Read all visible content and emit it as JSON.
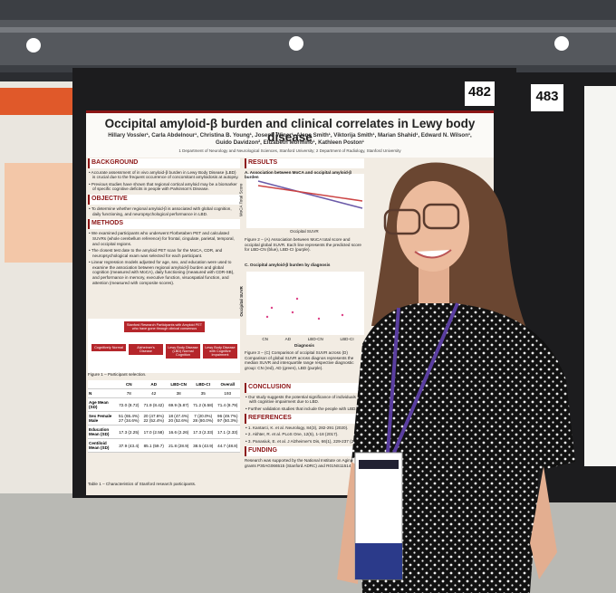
{
  "boards": [
    "482",
    "483"
  ],
  "poster": {
    "title": "Occipital amyloid-β burden and clinical correlates in Lewy body disease",
    "authors": "Hillary Vossler¹, Carla Abdelnour¹, Christina B. Young¹, Joseph Winer¹, Alena Smith¹, Viktorija Smith¹, Marian Shahid¹, Edward N. Wilson¹, Guido Davidzon², Elizabeth Mormino¹, Kathleen Poston¹",
    "affiliation": "1 Department of Neurology and Neurological Sciences, Stanford University; 2 Department of Radiology, Stanford University",
    "sections": [
      {
        "heading": "BACKGROUND",
        "items": [
          "Accurate assessment of in vivo amyloid-β burden in Lewy Body Disease (LBD) is crucial due to the frequent occurrence of concomitant amyloidosis at autopsy.",
          "Previous studies have shown that regional cortical amyloid may be a biomarker of specific cognitive deficits in people with Parkinson's Disease."
        ]
      },
      {
        "heading": "OBJECTIVE",
        "items": [
          "To determine whether regional amyloid-β is associated with global cognition, daily functioning, and neuropsychological performance in LBD."
        ]
      },
      {
        "heading": "METHODS",
        "items": [
          "We examined participants who underwent Florbetaben PET and calculated SUVRs (whole cerebellum reference) for frontal, cingulate, parietal, temporal, and occipital regions.",
          "The closest test date to the amyloid PET scan for the MoCA, CDR, and neuropsychological exam was selected for each participant.",
          "Linear regression models adjusted for age, sex, and education were used to examine the association between regional amyloid-β burden and global cognition (measured with MoCA), daily functioning (measured with CDR-SB), and performance in memory, executive function, visuospatial function, and attention (measured with composite scores)."
        ]
      }
    ],
    "figure1": {
      "top": "Stanford Research Participants with Amyloid PET who have gone through clinical consensus",
      "boxes": [
        "Cognitively Normal",
        "Alzheimer's Disease",
        "Lewy Body Disease (LBD) Normal Cognition",
        "Lewy Body Disease with Cognitive Impairment"
      ],
      "caption": "Figure 1 – Participant selection."
    },
    "table": {
      "header": [
        "",
        "CN",
        "AD",
        "LBD-CN",
        "LBD-CI",
        "Overall"
      ],
      "rows": [
        [
          "N",
          "78",
          "42",
          "38",
          "35",
          "193"
        ],
        [
          "Age Mean (SD)",
          "72.0 (8.72)",
          "71.9 (8.42)",
          "69.9 (5.87)",
          "71.2 (6.58)",
          "71.4 (8.79)"
        ],
        [
          "Sex Female Male",
          "51 (65.4%) 27 (34.6%)",
          "20 (47.6%) 22 (52.4%)",
          "18 (47.4%) 20 (52.6%)",
          "7 (20.0%) 28 (80.0%)",
          "96 (49.7%) 97 (50.3%)"
        ],
        [
          "Education Mean (SD)",
          "17.3 (2.25)",
          "17.0 (2.58)",
          "16.6 (2.26)",
          "17.3 (2.33)",
          "17.1 (2.33)"
        ],
        [
          "Centiloid Mean (SD)",
          "37.9 (43.4)",
          "85.1 (59.7)",
          "21.8 (28.9)",
          "38.5 (43.9)",
          "44.7 (48.8)"
        ]
      ],
      "caption": "Table 1 – Characteristics of Stanford research participants."
    },
    "results": {
      "heading": "RESULTS",
      "chart_a": {
        "title": "A. Association between MoCA and occipital amyloid-β burden",
        "x_label": "Occipital SUVR",
        "y_label": "MoCA Total Score"
      },
      "caption_a": "Figure 2 – (A) Association between MoCA total score and occipital global SUVR. Each line represents the predicted score for LBD-CN (blue), LBD-CI (purple).",
      "chart_c": {
        "title": "C. Occipital amyloid-β burden by diagnosis",
        "x_label": "Diagnosis",
        "y_label": "Occipital SUVR",
        "groups": [
          "CN",
          "AD",
          "LBD-CN",
          "LBD-CI"
        ]
      },
      "caption_c": "Figure 3 – (C) Comparison of occipital SUVR across (D) Comparison of global SUVR across diagnos represents the median SUVR and interquartile range respective diagnostic group: CN (red), AD (green), LBD (purple)."
    },
    "conclusion": {
      "heading": "CONCLUSION",
      "items": [
        "Our study suggests the potential significance of individuals with cognitive impairment due to LBD.",
        "Further validation studies that include the people with LBD."
      ]
    },
    "references": {
      "heading": "REFERENCES",
      "items": [
        "1. Kantarci, K. et al. Neurology, 84(3), 282-291 (2020).",
        "2. Akhter, R. et al. PLoS One, 12(5), 1-18 (2017).",
        "3. Panasiuk, E. et al. J Alzheimer's Dis, 66(1), 229-237 (2018)."
      ]
    },
    "funding": {
      "heading": "FUNDING",
      "text": "Research was supported by the National Institute on Aging grants P30AG066515 (Stanford ADRC) and R01NS115144 (KP)."
    }
  }
}
